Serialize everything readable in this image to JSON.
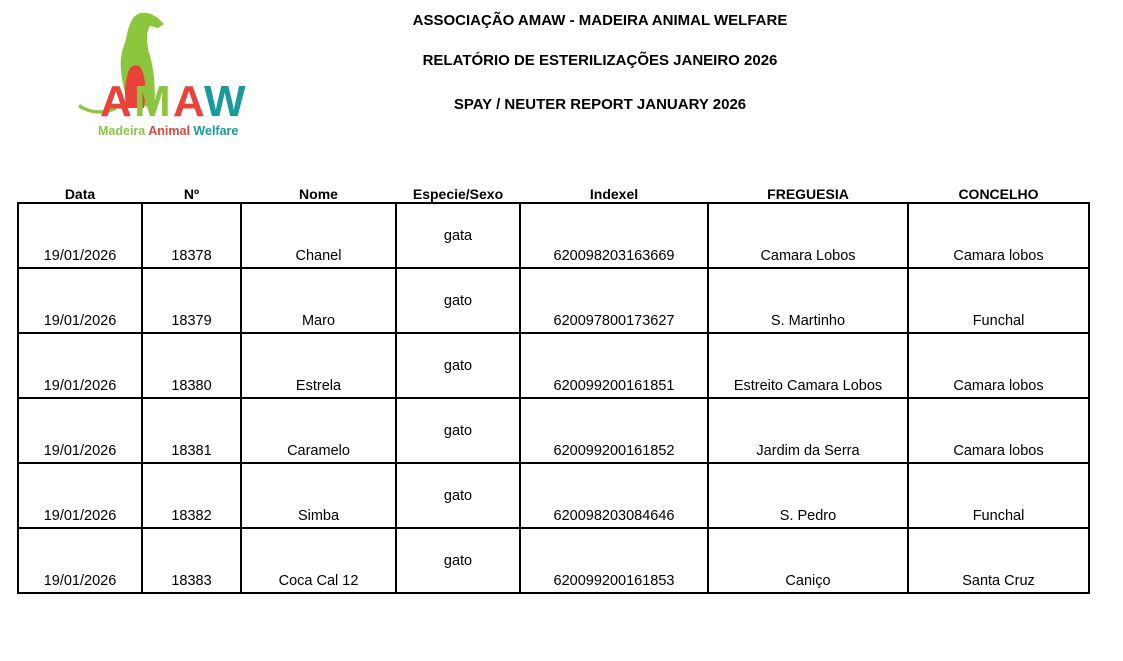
{
  "header": {
    "org": "ASSOCIAÇÃO AMAW - MADEIRA ANIMAL WELFARE",
    "report_pt": "RELATÓRIO DE ESTERILIZAÇÕES JANEIRO 2026",
    "report_en": "SPAY / NEUTER REPORT JANUARY 2026"
  },
  "logo": {
    "letters": "AMAW",
    "tagline": [
      "Madeira",
      "Animal",
      "Welfare"
    ],
    "colors": {
      "green": "#8cc63f",
      "red": "#e8423a",
      "teal": "#1a9a9a"
    }
  },
  "table": {
    "columns": [
      "Data",
      "Nº",
      "Nome",
      "Especie/Sexo",
      "Indexel",
      "FREGUESIA",
      "CONCELHO"
    ],
    "rows": [
      [
        "19/01/2026",
        "18378",
        "Chanel",
        "gata",
        "620098203163669",
        "Camara Lobos",
        "Camara lobos"
      ],
      [
        "19/01/2026",
        "18379",
        "Maro",
        "gato",
        "620097800173627",
        "S. Martinho",
        "Funchal"
      ],
      [
        "19/01/2026",
        "18380",
        "Estrela",
        "gato",
        "620099200161851",
        "Estreito Camara Lobos",
        "Camara lobos"
      ],
      [
        "19/01/2026",
        "18381",
        "Caramelo",
        "gato",
        "620099200161852",
        "Jardim da Serra",
        "Camara lobos"
      ],
      [
        "19/01/2026",
        "18382",
        "Simba",
        "gato",
        "620098203084646",
        "S. Pedro",
        "Funchal"
      ],
      [
        "19/01/2026",
        "18383",
        "Coca Cal 12",
        "gato",
        "620099200161853",
        "Caniço",
        "Santa Cruz"
      ]
    ]
  }
}
